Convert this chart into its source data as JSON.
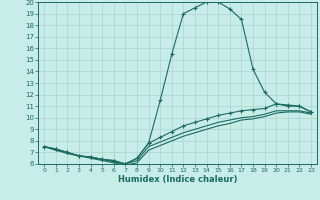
{
  "xlabel": "Humidex (Indice chaleur)",
  "bg_color": "#c8ece8",
  "grid_color": "#b0d8d2",
  "line_color": "#1a6b5e",
  "xlim": [
    -0.5,
    23.5
  ],
  "ylim": [
    6,
    20
  ],
  "xticks": [
    0,
    1,
    2,
    3,
    4,
    5,
    6,
    7,
    8,
    9,
    10,
    11,
    12,
    13,
    14,
    15,
    16,
    17,
    18,
    19,
    20,
    21,
    22,
    23
  ],
  "yticks": [
    6,
    7,
    8,
    9,
    10,
    11,
    12,
    13,
    14,
    15,
    16,
    17,
    18,
    19,
    20
  ],
  "curve1_x": [
    0,
    1,
    2,
    3,
    4,
    5,
    6,
    7,
    8,
    9,
    10,
    11,
    12,
    13,
    14,
    15,
    16,
    17,
    18,
    19,
    20,
    21,
    22,
    23
  ],
  "curve1_y": [
    7.5,
    7.3,
    7.0,
    6.7,
    6.6,
    6.4,
    6.3,
    6.0,
    6.5,
    7.8,
    11.5,
    15.5,
    19.0,
    19.5,
    20.0,
    20.0,
    19.4,
    18.5,
    14.2,
    12.2,
    11.2,
    11.0,
    11.0,
    10.5
  ],
  "curve2_x": [
    0,
    1,
    2,
    3,
    4,
    5,
    6,
    7,
    8,
    9,
    10,
    11,
    12,
    13,
    14,
    15,
    16,
    17,
    18,
    19,
    20,
    21,
    22,
    23
  ],
  "curve2_y": [
    7.5,
    7.3,
    7.0,
    6.7,
    6.6,
    6.4,
    6.3,
    6.0,
    6.5,
    7.8,
    8.3,
    8.8,
    9.3,
    9.6,
    9.9,
    10.2,
    10.4,
    10.6,
    10.7,
    10.8,
    11.2,
    11.1,
    11.0,
    10.5
  ],
  "curve3_x": [
    0,
    1,
    2,
    3,
    4,
    5,
    6,
    7,
    8,
    9,
    10,
    11,
    12,
    13,
    14,
    15,
    16,
    17,
    18,
    19,
    20,
    21,
    22,
    23
  ],
  "curve3_y": [
    7.5,
    7.2,
    7.0,
    6.7,
    6.6,
    6.4,
    6.2,
    6.0,
    6.3,
    7.5,
    7.9,
    8.3,
    8.7,
    9.0,
    9.3,
    9.6,
    9.8,
    10.0,
    10.1,
    10.3,
    10.6,
    10.6,
    10.6,
    10.4
  ],
  "curve4_x": [
    0,
    1,
    2,
    3,
    4,
    5,
    6,
    7,
    8,
    9,
    10,
    11,
    12,
    13,
    14,
    15,
    16,
    17,
    18,
    19,
    20,
    21,
    22,
    23
  ],
  "curve4_y": [
    7.5,
    7.2,
    6.9,
    6.7,
    6.5,
    6.3,
    6.1,
    5.9,
    6.1,
    7.2,
    7.6,
    8.0,
    8.4,
    8.7,
    9.0,
    9.3,
    9.5,
    9.8,
    9.9,
    10.1,
    10.4,
    10.5,
    10.5,
    10.3
  ]
}
